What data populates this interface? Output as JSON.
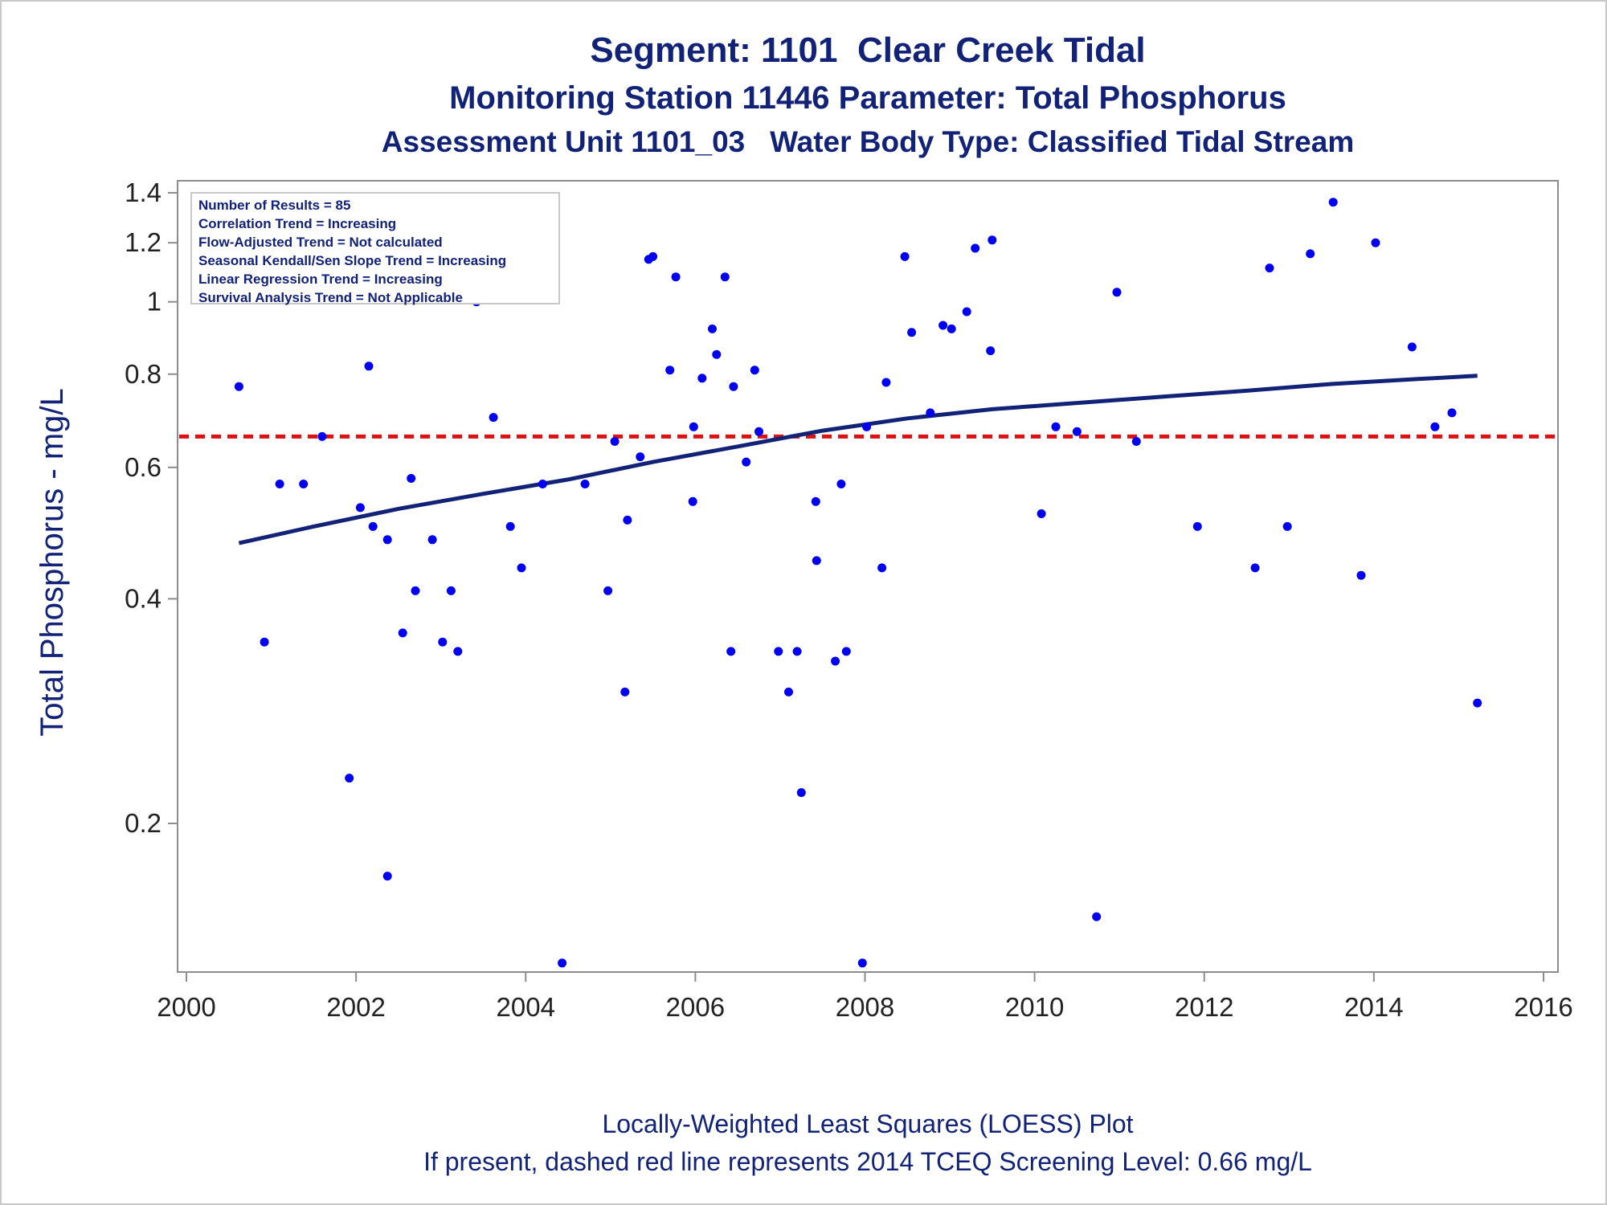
{
  "chart_data": {
    "type": "scatter",
    "title": "Segment: 1101  Clear Creek Tidal",
    "subtitle": "Monitoring Station 11446 Parameter: Total Phosphorus",
    "subtitle2": "Assessment Unit 1101_03   Water Body Type: Classified Tidal Stream",
    "xlabel": "",
    "ylabel": "Total Phosphorus - mg/L",
    "x_ticks": [
      "2000",
      "2002",
      "2004",
      "2006",
      "2008",
      "2010",
      "2012",
      "2014",
      "2016"
    ],
    "y_ticks": [
      "0.2",
      "0.4",
      "0.6",
      "0.8",
      "1",
      "1.2",
      "1.4"
    ],
    "y_scale": "log",
    "xlim": [
      2000,
      2016
    ],
    "ylim": [
      0.13,
      1.45
    ],
    "grid": false,
    "colors": {
      "points": "#0000ee",
      "trend": "#112277",
      "screening": "#dd1111"
    },
    "legend": {
      "placement": "top-left",
      "lines": [
        "Number of Results = 85",
        "Correlation Trend = Increasing",
        "Flow-Adjusted Trend = Not calculated",
        "Seasonal Kendall/Sen Slope Trend = Increasing",
        "Linear Regression Trend = Increasing",
        "Survival Analysis Trend = Not Applicable"
      ]
    },
    "screening_level": 0.66,
    "series": [
      {
        "type": "scatter",
        "points": [
          [
            2000.62,
            0.77
          ],
          [
            2000.92,
            0.35
          ],
          [
            2001.1,
            0.57
          ],
          [
            2001.38,
            0.57
          ],
          [
            2001.6,
            0.66
          ],
          [
            2001.92,
            0.23
          ],
          [
            2002.05,
            0.53
          ],
          [
            2002.15,
            0.82
          ],
          [
            2002.2,
            0.5
          ],
          [
            2002.37,
            0.48
          ],
          [
            2002.37,
            0.17
          ],
          [
            2002.55,
            0.36
          ],
          [
            2002.65,
            0.58
          ],
          [
            2002.7,
            0.41
          ],
          [
            2002.9,
            0.48
          ],
          [
            2003.02,
            0.35
          ],
          [
            2003.12,
            0.41
          ],
          [
            2003.2,
            0.34
          ],
          [
            2003.42,
            1.0
          ],
          [
            2003.62,
            0.7
          ],
          [
            2003.82,
            0.5
          ],
          [
            2003.95,
            0.44
          ],
          [
            2004.2,
            0.57
          ],
          [
            2004.43,
            0.13
          ],
          [
            2004.7,
            0.57
          ],
          [
            2004.97,
            0.41
          ],
          [
            2005.05,
            0.65
          ],
          [
            2005.17,
            0.3
          ],
          [
            2005.2,
            0.51
          ],
          [
            2005.35,
            0.62
          ],
          [
            2005.45,
            1.14
          ],
          [
            2005.5,
            1.15
          ],
          [
            2005.7,
            0.81
          ],
          [
            2005.77,
            1.08
          ],
          [
            2005.97,
            0.54
          ],
          [
            2005.98,
            0.68
          ],
          [
            2006.08,
            0.79
          ],
          [
            2006.2,
            0.92
          ],
          [
            2006.25,
            0.85
          ],
          [
            2006.35,
            1.08
          ],
          [
            2006.42,
            0.34
          ],
          [
            2006.45,
            0.77
          ],
          [
            2006.6,
            0.61
          ],
          [
            2006.7,
            0.81
          ],
          [
            2006.75,
            0.67
          ],
          [
            2006.98,
            0.34
          ],
          [
            2007.1,
            0.3
          ],
          [
            2007.2,
            0.34
          ],
          [
            2007.25,
            0.22
          ],
          [
            2007.42,
            0.54
          ],
          [
            2007.43,
            0.45
          ],
          [
            2007.65,
            0.33
          ],
          [
            2007.72,
            0.57
          ],
          [
            2007.78,
            0.34
          ],
          [
            2007.97,
            0.13
          ],
          [
            2008.02,
            0.68
          ],
          [
            2008.2,
            0.44
          ],
          [
            2008.25,
            0.78
          ],
          [
            2008.47,
            1.15
          ],
          [
            2008.55,
            0.91
          ],
          [
            2008.77,
            0.71
          ],
          [
            2008.92,
            0.93
          ],
          [
            2009.02,
            0.92
          ],
          [
            2009.2,
            0.97
          ],
          [
            2009.3,
            1.18
          ],
          [
            2009.48,
            0.86
          ],
          [
            2009.5,
            1.21
          ],
          [
            2010.08,
            0.52
          ],
          [
            2010.25,
            0.68
          ],
          [
            2010.5,
            0.67
          ],
          [
            2010.73,
            0.15
          ],
          [
            2010.97,
            1.03
          ],
          [
            2011.2,
            0.65
          ],
          [
            2011.92,
            0.5
          ],
          [
            2012.6,
            0.44
          ],
          [
            2012.77,
            1.11
          ],
          [
            2012.98,
            0.5
          ],
          [
            2013.25,
            1.16
          ],
          [
            2013.52,
            1.36
          ],
          [
            2013.85,
            0.43
          ],
          [
            2014.02,
            1.2
          ],
          [
            2014.45,
            0.87
          ],
          [
            2014.72,
            0.68
          ],
          [
            2014.92,
            0.71
          ],
          [
            2015.22,
            0.29
          ]
        ]
      },
      {
        "type": "line",
        "points": [
          [
            2000.62,
            0.475
          ],
          [
            2001.5,
            0.5
          ],
          [
            2002.5,
            0.528
          ],
          [
            2003.5,
            0.553
          ],
          [
            2004.5,
            0.578
          ],
          [
            2005.5,
            0.61
          ],
          [
            2006.5,
            0.64
          ],
          [
            2007.5,
            0.672
          ],
          [
            2008.5,
            0.698
          ],
          [
            2009.5,
            0.718
          ],
          [
            2010.5,
            0.732
          ],
          [
            2011.5,
            0.746
          ],
          [
            2012.5,
            0.76
          ],
          [
            2013.5,
            0.776
          ],
          [
            2014.5,
            0.788
          ],
          [
            2015.22,
            0.796
          ]
        ]
      }
    ]
  },
  "footnotes": {
    "line1": "Locally-Weighted Least Squares (LOESS) Plot",
    "line2": "If present, dashed red line represents 2014 TCEQ Screening Level: 0.66 mg/L"
  }
}
